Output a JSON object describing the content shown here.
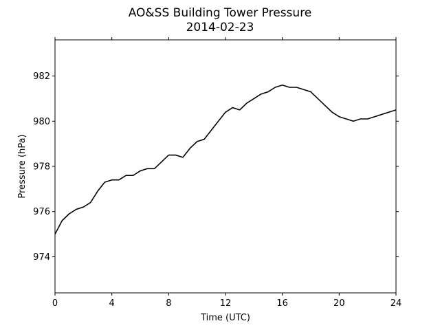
{
  "chart_data": {
    "type": "line",
    "title": "AO&SS Building Tower Pressure",
    "subtitle": "2014-02-23",
    "xlabel": "Time (UTC)",
    "ylabel": "Pressure (hPa)",
    "xlim": [
      0,
      24
    ],
    "ylim": [
      972.4,
      983.6
    ],
    "xticks": [
      0,
      4,
      8,
      12,
      16,
      20,
      24
    ],
    "yticks": [
      974,
      976,
      978,
      980,
      982
    ],
    "grid": false,
    "line_color": "#000000",
    "series": [
      {
        "x": [
          0,
          0.25,
          0.5,
          1,
          1.5,
          2,
          2.5,
          3,
          3.5,
          4,
          4.5,
          5,
          5.5,
          6,
          6.5,
          7,
          7.5,
          8,
          8.5,
          9,
          9.5,
          10,
          10.5,
          11,
          11.5,
          12,
          12.5,
          13,
          13.5,
          14,
          14.5,
          15,
          15.5,
          16,
          16.5,
          17,
          17.5,
          18,
          18.5,
          19,
          19.5,
          20,
          20.5,
          21,
          21.5,
          22,
          22.5,
          23,
          23.5,
          24
        ],
        "y": [
          975.0,
          975.3,
          975.6,
          975.9,
          976.1,
          976.2,
          976.4,
          976.9,
          977.3,
          977.4,
          977.4,
          977.6,
          977.6,
          977.8,
          977.9,
          977.9,
          978.2,
          978.5,
          978.5,
          978.4,
          978.8,
          979.1,
          979.2,
          979.6,
          980.0,
          980.4,
          980.6,
          980.5,
          980.8,
          981.0,
          981.2,
          981.3,
          981.5,
          981.6,
          981.5,
          981.5,
          981.4,
          981.3,
          981.0,
          980.7,
          980.4,
          980.2,
          980.1,
          980.0,
          980.1,
          980.1,
          980.2,
          980.3,
          980.4,
          980.5
        ]
      }
    ]
  }
}
